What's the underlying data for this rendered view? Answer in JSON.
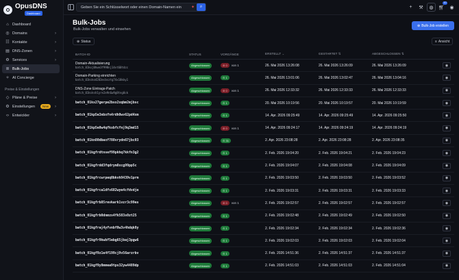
{
  "app": {
    "name": "OpusDNS",
    "badge": "Dashboard"
  },
  "sidebar": {
    "items": [
      {
        "label": "Dashboard",
        "icon": "home-icon",
        "chevron": false,
        "active": false
      },
      {
        "label": "Domains",
        "icon": "globe-icon",
        "chevron": true,
        "active": false
      },
      {
        "label": "Kontakte",
        "icon": "contacts-icon",
        "chevron": true,
        "active": false
      },
      {
        "label": "DNS-Zonen",
        "icon": "dns-icon",
        "chevron": true,
        "active": false
      },
      {
        "label": "Services",
        "icon": "services-icon",
        "chevron": true,
        "active": false
      },
      {
        "label": "Bulk-Jobs",
        "icon": "layers-icon",
        "chevron": false,
        "active": true
      },
      {
        "label": "AI Concierge",
        "icon": "ai-icon",
        "chevron": false,
        "active": false
      }
    ],
    "section_label": "Preise & Einstellungen",
    "section_items": [
      {
        "label": "Pläne & Preise",
        "icon": "tag-icon",
        "chevron": true,
        "badge": ""
      },
      {
        "label": "Einstellungen",
        "icon": "gear-icon",
        "chevron": true,
        "badge": "New"
      },
      {
        "label": "Entwickler",
        "icon": "code-icon",
        "chevron": true,
        "badge": ""
      }
    ]
  },
  "topbar": {
    "search_placeholder": "Geben Sie ein Schlüsselwort oder einen Domain-Namen ein",
    "cart_count": "10"
  },
  "page": {
    "title": "Bulk-Jobs",
    "subtitle": "Bulk-Jobs verwalten und einsehen",
    "create_button": "Bulk-Job erstellen",
    "status_filter": "Status",
    "view_button": "Ansicht"
  },
  "table": {
    "headers": {
      "id": "BATCH-ID",
      "status": "STATUS",
      "vorgaenge": "VORGÄNGE",
      "erstellt": "ERSTELLT",
      "gestartet": "GESTARTET",
      "abgeschlossen": "ABGESCHLOSSEN"
    },
    "rows": [
      {
        "title": "Domain-Aktualisierung",
        "id": "batch_01kxj0hwe3f998nj14vt60tdzc",
        "status": "Abgeschlossen",
        "err": "0",
        "ok": "",
        "total": "von 1",
        "created": "26. Mai 2026 13:26:08",
        "started": "26. Mai 2026 13:26:09",
        "finished": "26. Mai 2026 13:26:09"
      },
      {
        "title": "Domain-Parking einrichten",
        "id": "batch_01ksko4283ecbsztg74x18kky1",
        "status": "Abgeschlossen",
        "err": "",
        "ok": "1",
        "total": "",
        "created": "26. Mai 2026 13:01:06",
        "started": "26. Mai 2026 13:02:47",
        "finished": "26. Mai 2026 13:04:16"
      },
      {
        "title": "DNS-Zone Eintrags-Patch",
        "id": "batch_01ksksh1yre2e9n6w9g8tng8ck",
        "status": "Abgeschlossen",
        "err": "0",
        "ok": "",
        "total": "von 1",
        "created": "26. Mai 2026 12:33:32",
        "started": "26. Mai 2026 12:33:33",
        "finished": "26. Mai 2026 12:33:33"
      },
      {
        "title": "",
        "id": "batch_01ks27gerpe2bsx2xqbm2mjbsc",
        "status": "Abgeschlossen",
        "err": "",
        "ok": "1",
        "total": "",
        "created": "20. Mai 2026 10:19:56",
        "started": "20. Mai 2026 10:19:57",
        "finished": "20. Mai 2026 10:19:59"
      },
      {
        "title": "",
        "id": "batch_01kp5e3nbxfn4rdh0wv62pd4xm",
        "status": "Abgeschlossen",
        "err": "",
        "ok": "1",
        "total": "",
        "created": "14. Apr. 2026 09:25:49",
        "started": "14. Apr. 2026 09:25:49",
        "finished": "14. Apr. 2026 09:25:50"
      },
      {
        "title": "",
        "id": "batch_01kp5e0w4qfksbfcfnj9q3md15",
        "status": "Abgeschlossen",
        "err": "0",
        "ok": "",
        "total": "von 1",
        "created": "14. Apr. 2026 09:24:17",
        "started": "14. Apr. 2026 09:24:19",
        "finished": "14. Apr. 2026 09:24:19"
      },
      {
        "title": "",
        "id": "batch_01kn80dbaxf788vrydn67jbc03",
        "status": "Abgeschlossen",
        "err": "",
        "ok": "31",
        "total": "",
        "created": "2. Apr. 2026 23:08:28",
        "started": "2. Apr. 2026 23:08:28",
        "finished": "2. Apr. 2026 23:08:35"
      },
      {
        "title": "",
        "id": "batch_01kgfrdtnsef99pkhq7kkfn3g2",
        "status": "Abgeschlossen",
        "err": "",
        "ok": "1",
        "total": "",
        "created": "2. Feb. 2026 19:04:20",
        "started": "2. Feb. 2026 19:04:21",
        "finished": "2. Feb. 2026 19:04:23"
      },
      {
        "title": "",
        "id": "batch_01kgfrdd3fqdrym8xcg99pp5c",
        "status": "Abgeschlossen",
        "err": "",
        "ok": "1",
        "total": "",
        "created": "2. Feb. 2026 19:04:07",
        "started": "2. Feb. 2026 19:04:08",
        "finished": "2. Feb. 2026 19:04:09"
      },
      {
        "title": "",
        "id": "batch_01kgfrcwrpeq0bkvh9439v1prm",
        "status": "Abgeschlossen",
        "err": "",
        "ok": "1",
        "total": "",
        "created": "2. Feb. 2026 19:03:50",
        "started": "2. Feb. 2026 19:03:50",
        "finished": "2. Feb. 2026 19:03:52"
      },
      {
        "title": "",
        "id": "batch_01kgfrca1dfs682wye4cfdvdje",
        "status": "Abgeschlossen",
        "err": "",
        "ok": "1",
        "total": "",
        "created": "2. Feb. 2026 19:03:31",
        "started": "2. Feb. 2026 19:03:31",
        "finished": "2. Feb. 2026 19:03:33"
      },
      {
        "title": "",
        "id": "batch_01kgfrb85revkark1vzr3c99es",
        "status": "Abgeschlossen",
        "err": "0",
        "ok": "",
        "total": "von 1",
        "created": "2. Feb. 2026 19:02:57",
        "started": "2. Feb. 2026 19:02:57",
        "finished": "2. Feb. 2026 19:02:57"
      },
      {
        "title": "",
        "id": "batch_01kgfrb0dnmzs4fk583s0zt25",
        "status": "Abgeschlossen",
        "err": "",
        "ok": "1",
        "total": "",
        "created": "2. Feb. 2026 19:02:48",
        "started": "2. Feb. 2026 19:02:49",
        "finished": "2. Feb. 2026 19:02:50"
      },
      {
        "title": "",
        "id": "batch_01kgfraj4yfvnbf0w3v4hdqk0y",
        "status": "Abgeschlossen",
        "err": "",
        "ok": "1",
        "total": "",
        "created": "2. Feb. 2026 19:02:34",
        "started": "2. Feb. 2026 19:02:34",
        "finished": "2. Feb. 2026 19:02:36"
      },
      {
        "title": "",
        "id": "batch_01kgfr9kwbf5ebg65jbaj3pgw6",
        "status": "Abgeschlossen",
        "err": "",
        "ok": "1",
        "total": "",
        "created": "2. Feb. 2026 19:02:03",
        "started": "2. Feb. 2026 19:02:03",
        "finished": "2. Feb. 2026 19:02:04"
      },
      {
        "title": "",
        "id": "batch_01kgf9z1e4f199cj9v56arzrbv",
        "status": "Abgeschlossen",
        "err": "",
        "ok": "1",
        "total": "",
        "created": "2. Feb. 2026 14:51:36",
        "started": "2. Feb. 2026 14:51:37",
        "finished": "2. Feb. 2026 14:51:37"
      },
      {
        "title": "",
        "id": "batch_01kgf9y8mmea9tps32yw4489dp",
        "status": "Abgeschlossen",
        "err": "",
        "ok": "1",
        "total": "",
        "created": "2. Feb. 2026 14:51:03",
        "started": "2. Feb. 2026 14:51:03",
        "finished": "2. Feb. 2026 14:51:04"
      }
    ]
  }
}
